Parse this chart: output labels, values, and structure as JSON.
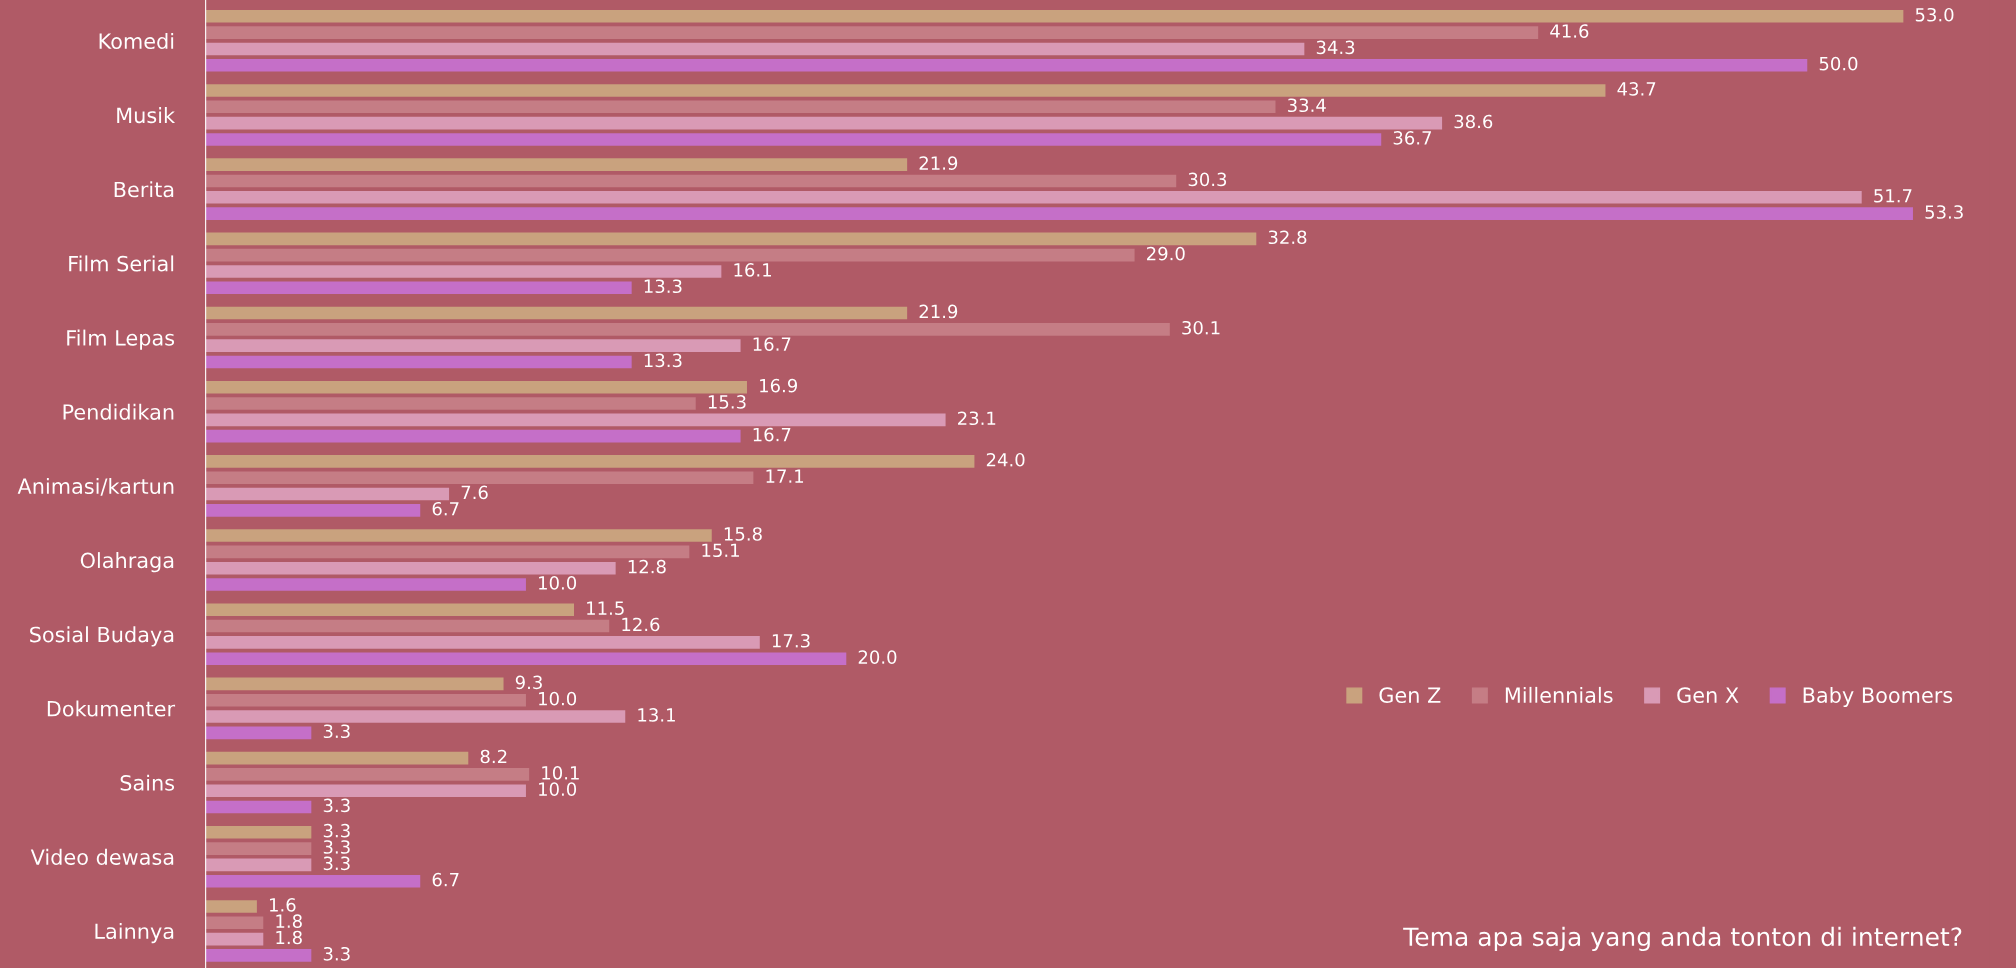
{
  "chart_data": {
    "type": "bar",
    "orientation": "horizontal",
    "legend": "right",
    "grid": false,
    "categories": [
      "Komedi",
      "Musik",
      "Berita",
      "Film Serial",
      "Film Lepas",
      "Pendidikan",
      "Animasi/kartun",
      "Olahraga",
      "Sosial Budaya",
      "Dokumenter",
      "Sains",
      "Video dewasa",
      "Lainnya"
    ],
    "series": [
      {
        "name": "Gen Z",
        "color": "#c9a27e",
        "values": [
          53.0,
          43.7,
          21.9,
          32.8,
          21.9,
          16.9,
          24.0,
          15.8,
          11.5,
          9.3,
          8.2,
          3.3,
          1.6
        ],
        "value_labels": [
          "53.0",
          "43.7",
          "21.9",
          "32.8",
          "21.9",
          "16.9",
          "24.0",
          "15.8",
          "11.5",
          "9.3",
          "8.2",
          "3.3",
          "1.6"
        ]
      },
      {
        "name": "Millennials",
        "color": "#c57d85",
        "values": [
          41.6,
          33.4,
          30.3,
          29.0,
          30.1,
          15.3,
          17.1,
          15.1,
          12.6,
          10.0,
          10.1,
          3.3,
          1.8
        ],
        "value_labels": [
          "41.6",
          "33.4",
          "30.3",
          "29.0",
          "30.1",
          "15.3",
          "17.1",
          "15.1",
          "12.6",
          "10.0",
          "10.1",
          "3.3",
          "1.8"
        ]
      },
      {
        "name": "Gen X",
        "color": "#d99ab5",
        "values": [
          34.3,
          38.6,
          51.7,
          16.1,
          16.7,
          23.1,
          7.6,
          12.8,
          17.3,
          13.1,
          10.0,
          3.3,
          1.8
        ],
        "value_labels": [
          "34.3",
          "38.6",
          "51.7",
          "16.1",
          "16.7",
          "23.1",
          "7.6",
          "12.8",
          "17.3",
          "13.1",
          "10.0",
          "3.3",
          "1.8"
        ]
      },
      {
        "name": "Baby Boomers",
        "color": "#c56fc8",
        "values": [
          50.0,
          36.7,
          53.3,
          13.3,
          13.3,
          16.7,
          6.7,
          10.0,
          20.0,
          3.3,
          3.3,
          6.7,
          3.3
        ],
        "value_labels": [
          "50.0",
          "36.7",
          "53.3",
          "13.3",
          "13.3",
          "16.7",
          "6.7",
          "10.0",
          "20.0",
          "3.3",
          "3.3",
          "6.7",
          "3.3"
        ]
      }
    ],
    "annotations": [
      "Tema apa saja yang anda tonton di internet?"
    ]
  }
}
